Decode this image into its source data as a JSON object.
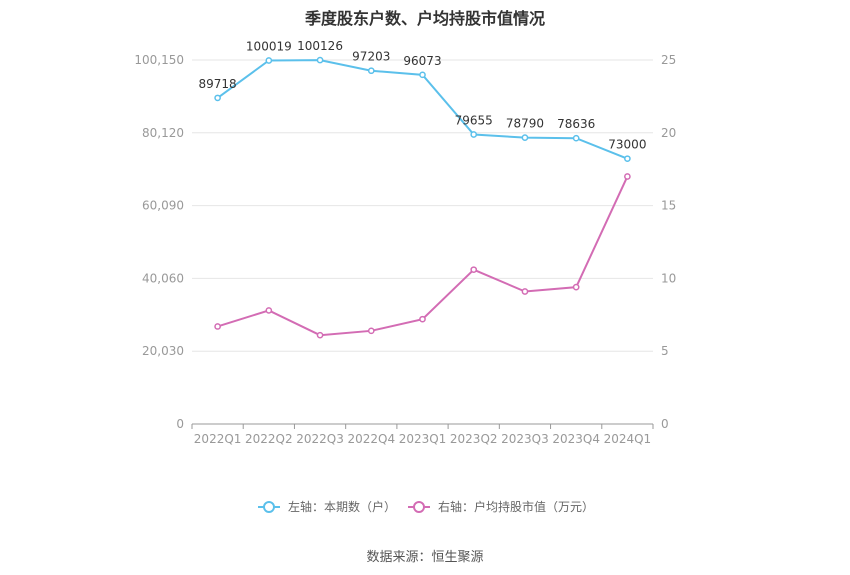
{
  "chart_data": {
    "type": "line",
    "title": "季度股东户数、户均持股市值情况",
    "categories": [
      "2022Q1",
      "2022Q2",
      "2022Q3",
      "2022Q4",
      "2023Q1",
      "2023Q2",
      "2023Q3",
      "2023Q4",
      "2024Q1"
    ],
    "left_axis": {
      "ticks": [
        "0",
        "20,030",
        "40,060",
        "60,090",
        "80,120",
        "100,150"
      ],
      "ylim": [
        0,
        100150
      ]
    },
    "right_axis": {
      "ticks": [
        "0",
        "5",
        "10",
        "15",
        "20",
        "25"
      ],
      "ylim": [
        0,
        25
      ]
    },
    "series": [
      {
        "name": "左轴：本期数（户）",
        "axis": "left",
        "color": "#5bc0eb",
        "values": [
          89718,
          100019,
          100126,
          97203,
          96073,
          79655,
          78790,
          78636,
          73000
        ],
        "labels": [
          "89718",
          "100019",
          "100126",
          "97203",
          "96073",
          "79655",
          "78790",
          "78636",
          "73000"
        ]
      },
      {
        "name": "右轴：户均持股市值（万元）",
        "axis": "right",
        "color": "#d36cb4",
        "values": [
          6.7,
          7.8,
          6.1,
          6.4,
          7.2,
          10.6,
          9.1,
          9.4,
          17.0
        ]
      }
    ],
    "grid": true,
    "legend_position": "bottom"
  },
  "source": "数据来源：恒生聚源"
}
